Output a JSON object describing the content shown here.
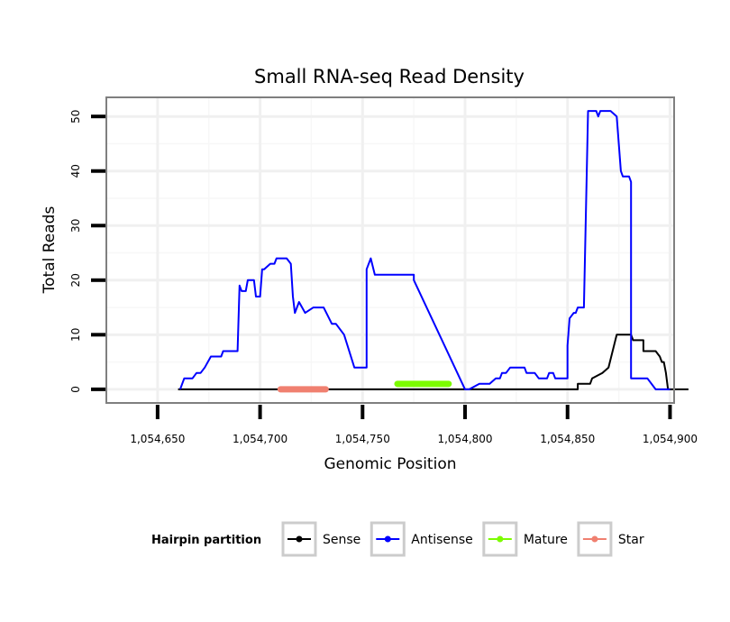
{
  "chart_data": {
    "type": "line",
    "title": "Small RNA-seq Read Density",
    "xlabel": "Genomic Position",
    "ylabel": "Total Reads",
    "xlim": [
      1054625,
      1054902
    ],
    "ylim": [
      -2.5,
      53.5
    ],
    "x_ticks": [
      1054650,
      1054700,
      1054750,
      1054800,
      1054850,
      1054900
    ],
    "x_tick_labels": [
      "1,054,650",
      "1,054,700",
      "1,054,750",
      "1,054,800",
      "1,054,850",
      "1,054,900"
    ],
    "y_ticks": [
      0,
      10,
      20,
      30,
      40,
      50
    ],
    "y_tick_labels": [
      "0",
      "10",
      "20",
      "30",
      "40",
      "50"
    ],
    "grid": true,
    "series": [
      {
        "name": "Sense",
        "color": "#000000",
        "x": [
          1054660,
          1054855,
          1054855,
          1054858,
          1054858,
          1054860,
          1054861,
          1054862,
          1054862,
          1054867,
          1054867,
          1054870,
          1054870,
          1054874,
          1054874,
          1054878,
          1054878,
          1054881,
          1054882,
          1054887,
          1054887,
          1054893,
          1054895,
          1054896,
          1054897,
          1054898,
          1054899,
          1054909
        ],
        "y": [
          0,
          0,
          1,
          1,
          1,
          1,
          1,
          2,
          2,
          3,
          3,
          4,
          4,
          10,
          10,
          10,
          10,
          10,
          9,
          9,
          7,
          7,
          6,
          5,
          5,
          3,
          0,
          0
        ]
      },
      {
        "name": "Antisense",
        "color": "#0000ff",
        "x": [
          1054661,
          1054663,
          1054664,
          1054667,
          1054667,
          1054669,
          1054669,
          1054671,
          1054671,
          1054673,
          1054673,
          1054676,
          1054676,
          1054681,
          1054682,
          1054686,
          1054688,
          1054689,
          1054690,
          1054691,
          1054693,
          1054694,
          1054697,
          1054698,
          1054699,
          1054700,
          1054701,
          1054702,
          1054702,
          1054705,
          1054707,
          1054708,
          1054713,
          1054713,
          1054715,
          1054715,
          1054716,
          1054716,
          1054717,
          1054717,
          1054719,
          1054719,
          1054722,
          1054726,
          1054727,
          1054729,
          1054731,
          1054735,
          1054737,
          1054741,
          1054741,
          1054746,
          1054747,
          1054747,
          1054752,
          1054752,
          1054752,
          1054754,
          1054754,
          1054756,
          1054757,
          1054767,
          1054770,
          1054774,
          1054775,
          1054775,
          1054800,
          1054802,
          1054807,
          1054808,
          1054809,
          1054811,
          1054812,
          1054815,
          1054817,
          1054818,
          1054820,
          1054820,
          1054822,
          1054827,
          1054828,
          1054829,
          1054830,
          1054831,
          1054833,
          1054834,
          1054836,
          1054837,
          1054838,
          1054840,
          1054841,
          1054843,
          1054844,
          1054846,
          1054846,
          1054850,
          1054850,
          1054851,
          1054851,
          1054853,
          1054853,
          1054854,
          1054855,
          1054857,
          1054858,
          1054860,
          1054860,
          1054862,
          1054864,
          1054865,
          1054866,
          1054868,
          1054869,
          1054871,
          1054874,
          1054876,
          1054877,
          1054879,
          1054880,
          1054881,
          1054881,
          1054882,
          1054887,
          1054889,
          1054893,
          1054894,
          1054896,
          1054898,
          1054900
        ],
        "y": [
          0,
          2,
          2,
          2,
          2,
          3,
          3,
          3,
          3,
          4,
          4,
          6,
          6,
          6,
          7,
          7,
          7,
          7,
          19,
          18,
          18,
          20,
          20,
          17,
          17,
          17,
          22,
          22,
          22,
          23,
          23,
          24,
          24,
          24,
          23,
          23,
          17,
          17,
          14,
          14,
          16,
          16,
          14,
          15,
          15,
          15,
          15,
          12,
          12,
          10,
          10,
          4,
          4,
          4,
          4,
          4,
          22,
          24,
          24,
          21,
          21,
          21,
          21,
          21,
          21,
          20,
          0,
          0,
          1,
          1,
          1,
          1,
          1,
          2,
          2,
          3,
          3,
          3,
          4,
          4,
          4,
          4,
          3,
          3,
          3,
          3,
          2,
          2,
          2,
          2,
          3,
          3,
          2,
          2,
          2,
          2,
          8,
          13,
          13,
          14,
          14,
          14,
          15,
          15,
          15,
          51,
          51,
          51,
          51,
          50,
          51,
          51,
          51,
          51,
          50,
          40,
          39,
          39,
          39,
          38,
          2,
          2,
          2,
          2,
          0,
          0,
          0,
          0,
          0
        ]
      }
    ],
    "intervals": [
      {
        "name": "Mature",
        "color": "#7cfc00",
        "x": [
          1054767,
          1054792
        ],
        "y": 1
      },
      {
        "name": "Star",
        "color": "#f08070",
        "x": [
          1054710,
          1054732
        ],
        "y": 0
      }
    ],
    "legend": {
      "title": "Hairpin partition",
      "placement": "bottom",
      "entries": [
        {
          "label": "Sense",
          "color": "#000000"
        },
        {
          "label": "Antisense",
          "color": "#0000ff"
        },
        {
          "label": "Mature",
          "color": "#7cfc00"
        },
        {
          "label": "Star",
          "color": "#f08070"
        }
      ]
    }
  }
}
